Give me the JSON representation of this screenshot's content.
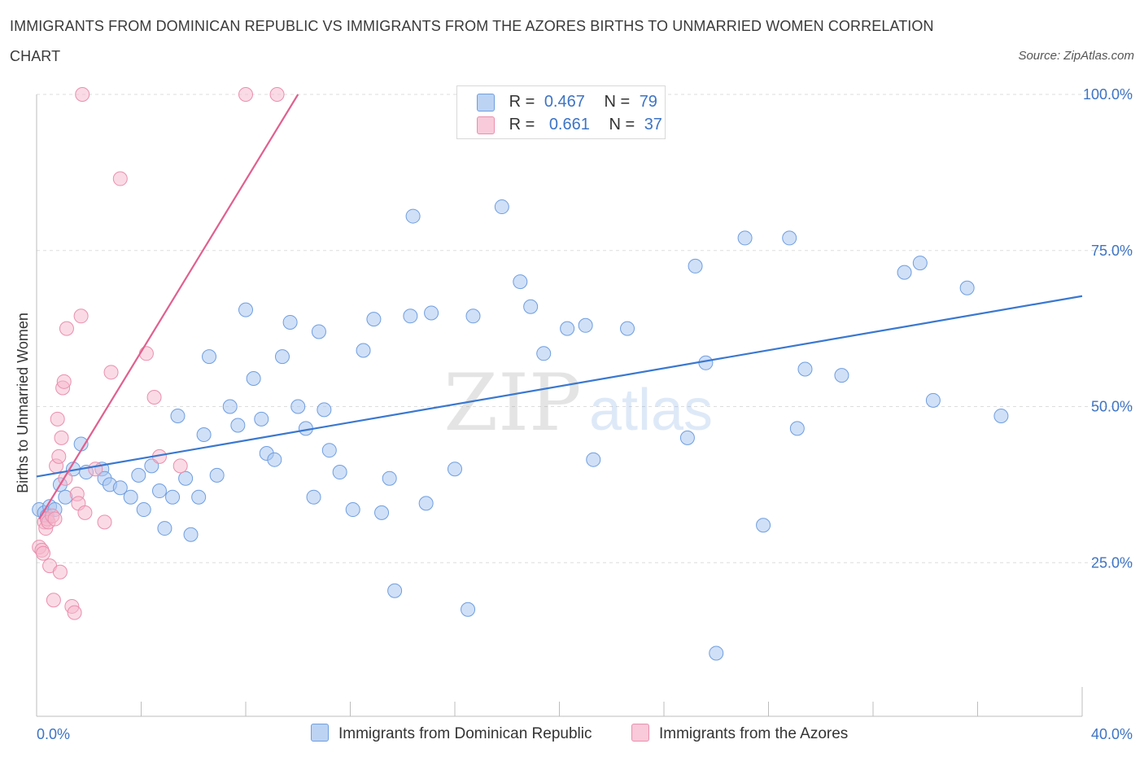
{
  "header": {
    "title": "IMMIGRANTS FROM DOMINICAN REPUBLIC VS IMMIGRANTS FROM THE AZORES BIRTHS TO UNMARRIED WOMEN CORRELATION CHART",
    "source": "Source: ZipAtlas.com"
  },
  "watermark": {
    "zip": "ZIP",
    "atlas": "atlas"
  },
  "legend_top": {
    "rows": [
      {
        "r_label": "R =",
        "r_value": "0.467",
        "n_label": "N =",
        "n_value": "79",
        "color": "#a9c6f0"
      },
      {
        "r_label": "R =",
        "r_value": "0.661",
        "n_label": "N =",
        "n_value": "37",
        "color": "#f6b8cc"
      }
    ]
  },
  "legend_bottom": {
    "items": [
      {
        "label": "Immigrants from Dominican Republic",
        "color": "#a9c6f0"
      },
      {
        "label": "Immigrants from the Azores",
        "color": "#f6b8cc"
      }
    ]
  },
  "chart_data": {
    "type": "scatter",
    "ylabel": "Births to Unmarried Women",
    "xlim": [
      0,
      40
    ],
    "ylim": [
      0,
      100
    ],
    "x_tick_labels": [
      "0.0%",
      "40.0%"
    ],
    "y_ticks": [
      25,
      50,
      75,
      100
    ],
    "y_tick_labels": [
      "25.0%",
      "50.0%",
      "75.0%",
      "100.0%"
    ],
    "grid": true,
    "colors": {
      "blue_fill": "#a9c6f0",
      "blue_stroke": "#6f9ee0",
      "blue_line": "#3a78d0",
      "pink_fill": "#f6b8cc",
      "pink_stroke": "#ea8fae",
      "pink_line": "#e0608e"
    },
    "series": [
      {
        "name": "Immigrants from Dominican Republic",
        "color": "#a9c6f0",
        "trend": {
          "x": [
            0,
            40
          ],
          "y": [
            38.8,
            67.7
          ]
        },
        "points": [
          [
            0.1,
            33.5
          ],
          [
            0.3,
            33.0
          ],
          [
            0.4,
            32.5
          ],
          [
            0.5,
            34.0
          ],
          [
            0.7,
            33.5
          ],
          [
            0.9,
            37.5
          ],
          [
            1.1,
            35.5
          ],
          [
            1.4,
            40.0
          ],
          [
            1.7,
            44.0
          ],
          [
            1.9,
            39.5
          ],
          [
            2.5,
            40.0
          ],
          [
            2.6,
            38.5
          ],
          [
            2.8,
            37.5
          ],
          [
            3.2,
            37.0
          ],
          [
            3.6,
            35.5
          ],
          [
            3.9,
            39.0
          ],
          [
            4.1,
            33.5
          ],
          [
            4.4,
            40.5
          ],
          [
            4.7,
            36.5
          ],
          [
            4.9,
            30.5
          ],
          [
            5.2,
            35.5
          ],
          [
            5.4,
            48.5
          ],
          [
            5.7,
            38.5
          ],
          [
            5.9,
            29.5
          ],
          [
            6.2,
            35.5
          ],
          [
            6.4,
            45.5
          ],
          [
            6.6,
            58.0
          ],
          [
            6.9,
            39.0
          ],
          [
            7.4,
            50.0
          ],
          [
            7.7,
            47.0
          ],
          [
            8.0,
            65.5
          ],
          [
            8.3,
            54.5
          ],
          [
            8.6,
            48.0
          ],
          [
            8.8,
            42.5
          ],
          [
            9.1,
            41.5
          ],
          [
            9.4,
            58.0
          ],
          [
            9.7,
            63.5
          ],
          [
            10.0,
            50.0
          ],
          [
            10.3,
            46.5
          ],
          [
            10.6,
            35.5
          ],
          [
            10.8,
            62.0
          ],
          [
            11.0,
            49.5
          ],
          [
            11.2,
            43.0
          ],
          [
            11.6,
            39.5
          ],
          [
            12.1,
            33.5
          ],
          [
            12.5,
            59.0
          ],
          [
            12.9,
            64.0
          ],
          [
            13.2,
            33.0
          ],
          [
            13.5,
            38.5
          ],
          [
            13.7,
            20.5
          ],
          [
            14.3,
            64.5
          ],
          [
            14.4,
            80.5
          ],
          [
            14.9,
            34.5
          ],
          [
            15.1,
            65.0
          ],
          [
            16.0,
            40.0
          ],
          [
            16.5,
            17.5
          ],
          [
            16.7,
            64.5
          ],
          [
            17.8,
            82.0
          ],
          [
            18.5,
            70.0
          ],
          [
            18.9,
            66.0
          ],
          [
            19.4,
            58.5
          ],
          [
            20.3,
            62.5
          ],
          [
            21.0,
            63.0
          ],
          [
            21.3,
            41.5
          ],
          [
            22.6,
            62.5
          ],
          [
            24.9,
            45.0
          ],
          [
            25.2,
            72.5
          ],
          [
            25.6,
            57.0
          ],
          [
            26.0,
            10.5
          ],
          [
            27.1,
            77.0
          ],
          [
            27.8,
            31.0
          ],
          [
            28.8,
            77.0
          ],
          [
            29.1,
            46.5
          ],
          [
            29.4,
            56.0
          ],
          [
            30.8,
            55.0
          ],
          [
            33.2,
            71.5
          ],
          [
            33.8,
            73.0
          ],
          [
            34.3,
            51.0
          ],
          [
            35.6,
            69.0
          ],
          [
            36.9,
            48.5
          ]
        ]
      },
      {
        "name": "Immigrants from the Azores",
        "color": "#f6b8cc",
        "trend": {
          "x": [
            0.1,
            10.0
          ],
          "y": [
            32.0,
            100.0
          ]
        },
        "points": [
          [
            0.1,
            27.5
          ],
          [
            0.2,
            27.0
          ],
          [
            0.25,
            26.5
          ],
          [
            0.3,
            31.5
          ],
          [
            0.35,
            30.5
          ],
          [
            0.4,
            32.0
          ],
          [
            0.45,
            31.5
          ],
          [
            0.5,
            24.5
          ],
          [
            0.6,
            32.5
          ],
          [
            0.65,
            19.0
          ],
          [
            0.7,
            32.0
          ],
          [
            0.75,
            40.5
          ],
          [
            0.8,
            48.0
          ],
          [
            0.85,
            42.0
          ],
          [
            0.9,
            23.5
          ],
          [
            0.95,
            45.0
          ],
          [
            1.0,
            53.0
          ],
          [
            1.05,
            54.0
          ],
          [
            1.1,
            38.5
          ],
          [
            1.15,
            62.5
          ],
          [
            1.35,
            18.0
          ],
          [
            1.45,
            17.0
          ],
          [
            1.55,
            36.0
          ],
          [
            1.6,
            34.5
          ],
          [
            1.7,
            64.5
          ],
          [
            1.75,
            100.0
          ],
          [
            1.85,
            33.0
          ],
          [
            2.25,
            40.0
          ],
          [
            2.6,
            31.5
          ],
          [
            2.85,
            55.5
          ],
          [
            3.2,
            86.5
          ],
          [
            4.2,
            58.5
          ],
          [
            4.5,
            51.5
          ],
          [
            4.7,
            42.0
          ],
          [
            5.5,
            40.5
          ],
          [
            8.0,
            100.0
          ],
          [
            9.2,
            100.0
          ]
        ]
      }
    ]
  }
}
